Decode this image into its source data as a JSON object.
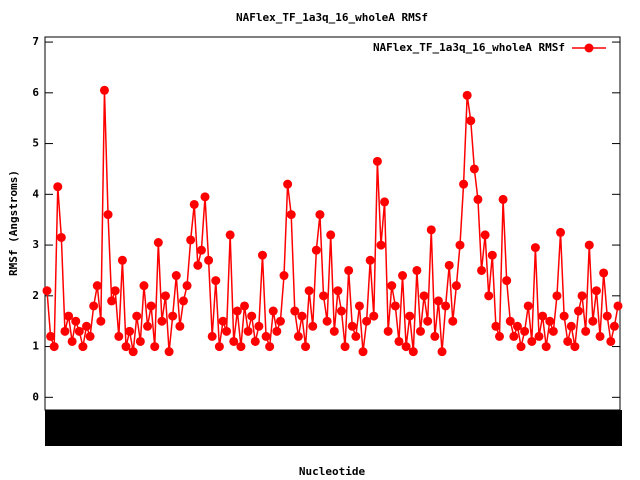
{
  "chart_data": {
    "type": "line",
    "title": "NAFlex_TF_1a3q_16_wholeA RMSf",
    "xlabel": "Nucleotide",
    "ylabel": "RMSf (Angstroms)",
    "legend": "top-right",
    "ylim": [
      -0.25,
      7.1
    ],
    "yticks": [
      0,
      1,
      2,
      3,
      4,
      5,
      6,
      7
    ],
    "series": [
      {
        "name": "NAFlex_TF_1a3q_16_wholeA RMSf",
        "color": "#ff0000",
        "values": [
          2.1,
          1.2,
          1.0,
          4.15,
          3.15,
          1.3,
          1.6,
          1.1,
          1.5,
          1.3,
          1.0,
          1.4,
          1.2,
          1.8,
          2.2,
          1.5,
          6.05,
          3.6,
          1.9,
          2.1,
          1.2,
          2.7,
          1.0,
          1.3,
          0.9,
          1.6,
          1.1,
          2.2,
          1.4,
          1.8,
          1.0,
          3.05,
          1.5,
          2.0,
          0.9,
          1.6,
          2.4,
          1.4,
          1.9,
          2.2,
          3.1,
          3.8,
          2.6,
          2.9,
          3.95,
          2.7,
          1.2,
          2.3,
          1.0,
          1.5,
          1.3,
          3.2,
          1.1,
          1.7,
          1.0,
          1.8,
          1.3,
          1.6,
          1.1,
          1.4,
          2.8,
          1.2,
          1.0,
          1.7,
          1.3,
          1.5,
          2.4,
          4.2,
          3.6,
          1.7,
          1.2,
          1.6,
          1.0,
          2.1,
          1.4,
          2.9,
          3.6,
          2.0,
          1.5,
          3.2,
          1.3,
          2.1,
          1.7,
          1.0,
          2.5,
          1.4,
          1.2,
          1.8,
          0.9,
          1.5,
          2.7,
          1.6,
          4.65,
          3.0,
          3.85,
          1.3,
          2.2,
          1.8,
          1.1,
          2.4,
          1.0,
          1.6,
          0.9,
          2.5,
          1.3,
          2.0,
          1.5,
          3.3,
          1.2,
          1.9,
          0.9,
          1.8,
          2.6,
          1.5,
          2.2,
          3.0,
          4.2,
          5.95,
          5.45,
          4.5,
          3.9,
          2.5,
          3.2,
          2.0,
          2.8,
          1.4,
          1.2,
          3.9,
          2.3,
          1.5,
          1.2,
          1.4,
          1.0,
          1.3,
          1.8,
          1.1,
          2.95,
          1.2,
          1.6,
          1.0,
          1.5,
          1.3,
          2.0,
          3.25,
          1.6,
          1.1,
          1.4,
          1.0,
          1.7,
          2.0,
          1.3,
          3.0,
          1.5,
          2.1,
          1.2,
          2.45,
          1.6,
          1.1,
          1.4,
          1.8
        ]
      }
    ]
  }
}
